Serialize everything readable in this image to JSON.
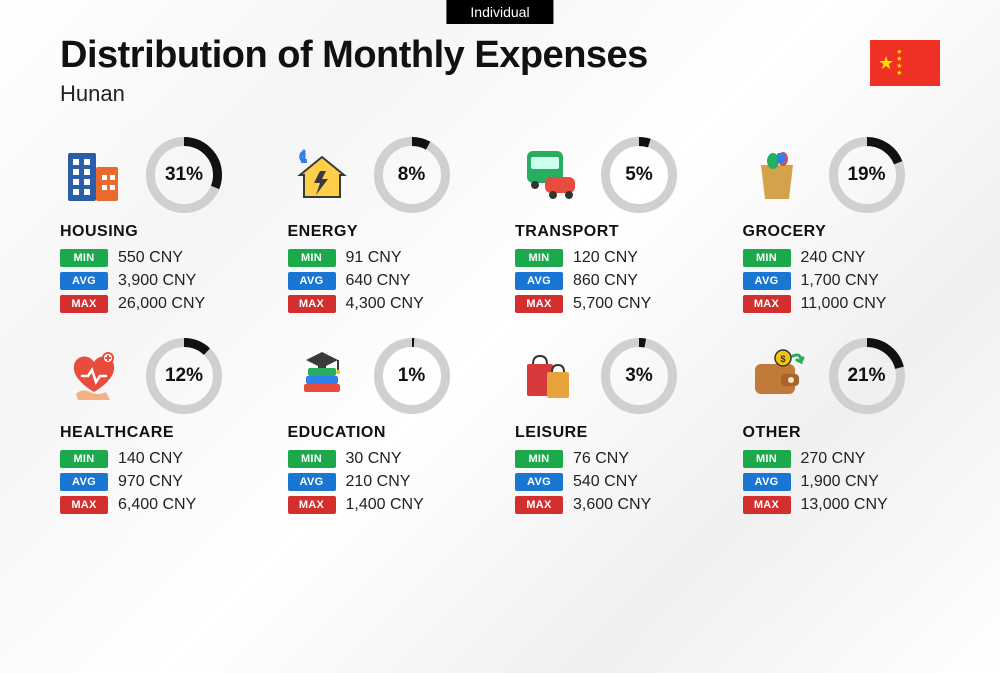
{
  "tag": "Individual",
  "title": "Distribution of Monthly Expenses",
  "subtitle": "Hunan",
  "donut": {
    "size": 76,
    "stroke_width": 9,
    "track_color": "#d0d0d0",
    "fill_color": "#111111"
  },
  "pills": {
    "min": {
      "label": "MIN",
      "color": "#1ba94c"
    },
    "avg": {
      "label": "AVG",
      "color": "#1976d2"
    },
    "max": {
      "label": "MAX",
      "color": "#d32f2f"
    }
  },
  "currency": "CNY",
  "categories": [
    {
      "key": "housing",
      "name": "HOUSING",
      "pct": 31,
      "min": "550 CNY",
      "avg": "3,900 CNY",
      "max": "26,000 CNY",
      "icon": "housing"
    },
    {
      "key": "energy",
      "name": "ENERGY",
      "pct": 8,
      "min": "91 CNY",
      "avg": "640 CNY",
      "max": "4,300 CNY",
      "icon": "energy"
    },
    {
      "key": "transport",
      "name": "TRANSPORT",
      "pct": 5,
      "min": "120 CNY",
      "avg": "860 CNY",
      "max": "5,700 CNY",
      "icon": "transport"
    },
    {
      "key": "grocery",
      "name": "GROCERY",
      "pct": 19,
      "min": "240 CNY",
      "avg": "1,700 CNY",
      "max": "11,000 CNY",
      "icon": "grocery"
    },
    {
      "key": "healthcare",
      "name": "HEALTHCARE",
      "pct": 12,
      "min": "140 CNY",
      "avg": "970 CNY",
      "max": "6,400 CNY",
      "icon": "healthcare"
    },
    {
      "key": "education",
      "name": "EDUCATION",
      "pct": 1,
      "min": "30 CNY",
      "avg": "210 CNY",
      "max": "1,400 CNY",
      "icon": "education"
    },
    {
      "key": "leisure",
      "name": "LEISURE",
      "pct": 3,
      "min": "76 CNY",
      "avg": "540 CNY",
      "max": "3,600 CNY",
      "icon": "leisure"
    },
    {
      "key": "other",
      "name": "OTHER",
      "pct": 21,
      "min": "270 CNY",
      "avg": "1,900 CNY",
      "max": "13,000 CNY",
      "icon": "other"
    }
  ],
  "icons": {
    "housing": {
      "type": "buildings",
      "colors": [
        "#2b5ea8",
        "#e86a2e"
      ]
    },
    "energy": {
      "type": "house-bolt",
      "colors": [
        "#ffcf4a",
        "#3a3a3a",
        "#2f80ed"
      ]
    },
    "transport": {
      "type": "bus-car",
      "colors": [
        "#27ae60",
        "#e74c3c"
      ]
    },
    "grocery": {
      "type": "bag-veg",
      "colors": [
        "#d4a24a",
        "#27ae60",
        "#e74c3c",
        "#2f80ed"
      ]
    },
    "healthcare": {
      "type": "heart-hand",
      "colors": [
        "#e74c3c",
        "#f4b183"
      ]
    },
    "education": {
      "type": "grad-books",
      "colors": [
        "#3a3a3a",
        "#27ae60",
        "#2f80ed",
        "#e74c3c"
      ]
    },
    "leisure": {
      "type": "shop-bags",
      "colors": [
        "#d63a3a",
        "#e8a33d"
      ]
    },
    "other": {
      "type": "wallet",
      "colors": [
        "#c07a3a",
        "#27ae60",
        "#f1c40f"
      ]
    }
  }
}
